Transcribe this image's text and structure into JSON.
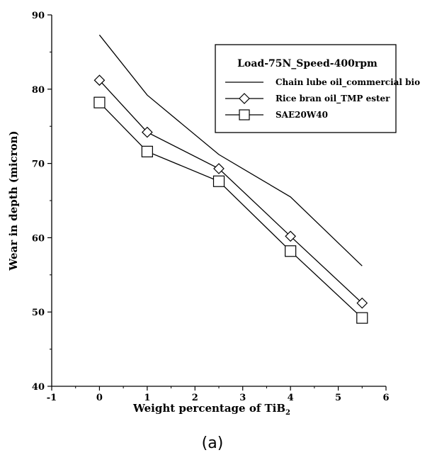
{
  "chart_data": {
    "type": "line",
    "title": "Load-75N_Speed-400rpm",
    "xlabel_main": "Weight percentage of TiB",
    "xlabel_sub": "2",
    "ylabel": "Wear in depth (micron)",
    "xlim": [
      -1,
      6
    ],
    "ylim": [
      40,
      90
    ],
    "x_ticks": [
      -1,
      0,
      1,
      2,
      3,
      4,
      5,
      6
    ],
    "y_ticks": [
      40,
      50,
      60,
      70,
      80,
      90
    ],
    "x": [
      0,
      1,
      2.5,
      4,
      5.5
    ],
    "series": [
      {
        "name": "Chain lube oil_commercial bio",
        "marker": "none",
        "values": [
          87.3,
          79.2,
          71.2,
          65.5,
          56.2
        ]
      },
      {
        "name": "Rice bran oil_TMP ester",
        "marker": "diamond",
        "values": [
          81.2,
          74.2,
          69.3,
          60.2,
          51.2
        ]
      },
      {
        "name": "SAE20W40",
        "marker": "square",
        "values": [
          78.2,
          71.6,
          67.6,
          58.2,
          49.2
        ]
      }
    ],
    "legend_placement": "top-right",
    "grid": false
  },
  "caption": "(a)"
}
